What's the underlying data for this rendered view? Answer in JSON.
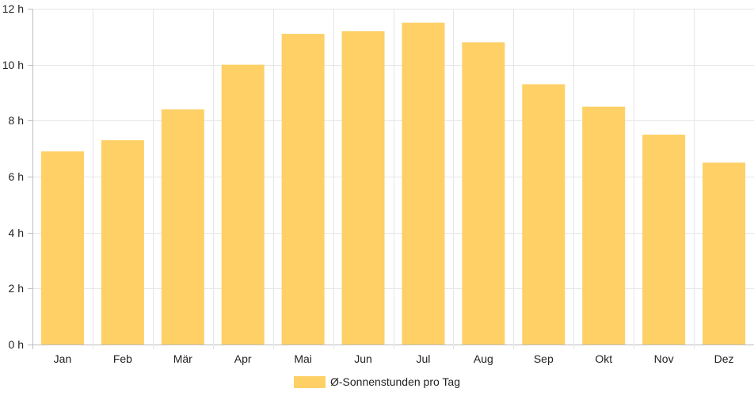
{
  "chart_data": {
    "type": "bar",
    "categories": [
      "Jan",
      "Feb",
      "Mär",
      "Apr",
      "Mai",
      "Jun",
      "Jul",
      "Aug",
      "Sep",
      "Okt",
      "Nov",
      "Dez"
    ],
    "series": [
      {
        "name": "Ø-Sonnenstunden pro Tag",
        "values": [
          6.9,
          7.3,
          8.4,
          10.0,
          11.1,
          11.2,
          11.5,
          10.8,
          9.3,
          8.5,
          7.5,
          6.5
        ],
        "color": "#fed066"
      }
    ],
    "y_ticks": [
      "0 h",
      "2 h",
      "4 h",
      "6 h",
      "8 h",
      "10 h",
      "12 h"
    ],
    "ylim": [
      0,
      12
    ],
    "grid": true,
    "legend_position": "bottom-center",
    "title": "",
    "xlabel": "",
    "ylabel": ""
  }
}
